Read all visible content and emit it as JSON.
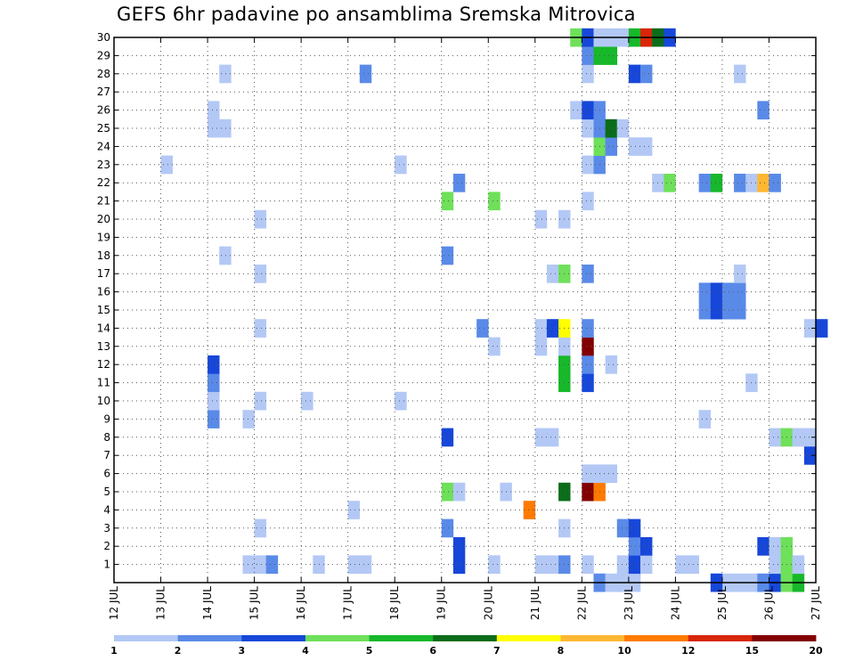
{
  "chart_data": {
    "type": "heatmap",
    "title": "GEFS 6hr padavine po ansamblima Sremska Mitrovica",
    "xlabel": "",
    "ylabel": "",
    "x_tick_labels": [
      "12 JUL",
      "13 JUL",
      "14 JUL",
      "15 JUL",
      "16 JUL",
      "17 JUL",
      "18 JUL",
      "19 JUL",
      "20 JUL",
      "21 JUL",
      "22 JUL",
      "23 JUL",
      "24 JUL",
      "25 JUL",
      "26 JUL",
      "27 JUL"
    ],
    "x_range_days": [
      12,
      27
    ],
    "time_step_hours": 6,
    "y_tick_labels": [
      "1",
      "2",
      "3",
      "4",
      "5",
      "6",
      "7",
      "8",
      "9",
      "10",
      "11",
      "12",
      "13",
      "14",
      "15",
      "16",
      "17",
      "18",
      "19",
      "20",
      "21",
      "22",
      "23",
      "24",
      "25",
      "26",
      "27",
      "28",
      "29",
      "30"
    ],
    "y_range": [
      0,
      30
    ],
    "grid": true,
    "legend_placement": "bottom",
    "legend": {
      "boundaries": [
        "1",
        "2",
        "3",
        "4",
        "5",
        "6",
        "7",
        "8",
        "10",
        "12",
        "15",
        "20"
      ],
      "colors": [
        "#b3c8f5",
        "#5a8ae8",
        "#1747d9",
        "#6ee05a",
        "#17b82a",
        "#0b6d1a",
        "#ffff00",
        "#ffb732",
        "#ff7a00",
        "#d72608",
        "#820000"
      ]
    },
    "cells": [
      {
        "day": 22,
        "slot": 1,
        "member": 0,
        "level": 2
      },
      {
        "day": 22,
        "slot": 2,
        "member": 0,
        "level": 1
      },
      {
        "day": 22,
        "slot": 3,
        "member": 0,
        "level": 1
      },
      {
        "day": 22,
        "slot": 4,
        "member": 0,
        "level": 1
      },
      {
        "day": 25,
        "slot": 0,
        "member": 0,
        "level": 1
      },
      {
        "day": 25,
        "slot": 1,
        "member": 0,
        "level": 1
      },
      {
        "day": 25,
        "slot": 2,
        "member": 0,
        "level": 1
      },
      {
        "day": 25,
        "slot": 3,
        "member": 0,
        "level": 2
      },
      {
        "day": 26,
        "slot": 0,
        "member": 0,
        "level": 3
      },
      {
        "day": 26,
        "slot": 1,
        "member": 0,
        "level": 4
      },
      {
        "day": 26,
        "slot": 2,
        "member": 0,
        "level": 5
      },
      {
        "day": 24,
        "slot": 3,
        "member": 0,
        "level": 3
      },
      {
        "day": 14,
        "slot": 3,
        "member": 1,
        "level": 1
      },
      {
        "day": 15,
        "slot": 0,
        "member": 1,
        "level": 1
      },
      {
        "day": 15,
        "slot": 1,
        "member": 1,
        "level": 2
      },
      {
        "day": 16,
        "slot": 1,
        "member": 1,
        "level": 1
      },
      {
        "day": 17,
        "slot": 0,
        "member": 1,
        "level": 1
      },
      {
        "day": 17,
        "slot": 1,
        "member": 1,
        "level": 1
      },
      {
        "day": 19,
        "slot": 1,
        "member": 1,
        "level": 3
      },
      {
        "day": 20,
        "slot": 0,
        "member": 1,
        "level": 1
      },
      {
        "day": 21,
        "slot": 0,
        "member": 1,
        "level": 1
      },
      {
        "day": 21,
        "slot": 1,
        "member": 1,
        "level": 1
      },
      {
        "day": 21,
        "slot": 2,
        "member": 1,
        "level": 2
      },
      {
        "day": 22,
        "slot": 0,
        "member": 1,
        "level": 1
      },
      {
        "day": 22,
        "slot": 3,
        "member": 1,
        "level": 1
      },
      {
        "day": 23,
        "slot": 0,
        "member": 1,
        "level": 3
      },
      {
        "day": 23,
        "slot": 1,
        "member": 1,
        "level": 1
      },
      {
        "day": 24,
        "slot": 0,
        "member": 1,
        "level": 1
      },
      {
        "day": 24,
        "slot": 1,
        "member": 1,
        "level": 1
      },
      {
        "day": 26,
        "slot": 0,
        "member": 1,
        "level": 1
      },
      {
        "day": 26,
        "slot": 1,
        "member": 1,
        "level": 4
      },
      {
        "day": 26,
        "slot": 2,
        "member": 1,
        "level": 1
      },
      {
        "day": 19,
        "slot": 1,
        "member": 2,
        "level": 3
      },
      {
        "day": 23,
        "slot": 0,
        "member": 2,
        "level": 2
      },
      {
        "day": 23,
        "slot": 1,
        "member": 2,
        "level": 3
      },
      {
        "day": 25,
        "slot": 3,
        "member": 2,
        "level": 3
      },
      {
        "day": 26,
        "slot": 0,
        "member": 2,
        "level": 1
      },
      {
        "day": 26,
        "slot": 1,
        "member": 2,
        "level": 4
      },
      {
        "day": 15,
        "slot": 0,
        "member": 3,
        "level": 1
      },
      {
        "day": 19,
        "slot": 0,
        "member": 3,
        "level": 2
      },
      {
        "day": 21,
        "slot": 2,
        "member": 3,
        "level": 1
      },
      {
        "day": 22,
        "slot": 3,
        "member": 3,
        "level": 2
      },
      {
        "day": 23,
        "slot": 0,
        "member": 3,
        "level": 3
      },
      {
        "day": 17,
        "slot": 0,
        "member": 4,
        "level": 1
      },
      {
        "day": 20,
        "slot": 3,
        "member": 4,
        "level": 9
      },
      {
        "day": 19,
        "slot": 0,
        "member": 5,
        "level": 4
      },
      {
        "day": 19,
        "slot": 1,
        "member": 5,
        "level": 1
      },
      {
        "day": 20,
        "slot": 1,
        "member": 5,
        "level": 1
      },
      {
        "day": 21,
        "slot": 2,
        "member": 5,
        "level": 6
      },
      {
        "day": 22,
        "slot": 0,
        "member": 5,
        "level": 11
      },
      {
        "day": 22,
        "slot": 1,
        "member": 5,
        "level": 9
      },
      {
        "day": 22,
        "slot": 0,
        "member": 6,
        "level": 1
      },
      {
        "day": 22,
        "slot": 1,
        "member": 6,
        "level": 1
      },
      {
        "day": 22,
        "slot": 2,
        "member": 6,
        "level": 1
      },
      {
        "day": 26,
        "slot": 3,
        "member": 7,
        "level": 3
      },
      {
        "day": 19,
        "slot": 0,
        "member": 8,
        "level": 3
      },
      {
        "day": 21,
        "slot": 0,
        "member": 8,
        "level": 1
      },
      {
        "day": 21,
        "slot": 1,
        "member": 8,
        "level": 1
      },
      {
        "day": 26,
        "slot": 0,
        "member": 8,
        "level": 1
      },
      {
        "day": 26,
        "slot": 1,
        "member": 8,
        "level": 4
      },
      {
        "day": 26,
        "slot": 2,
        "member": 8,
        "level": 1
      },
      {
        "day": 26,
        "slot": 3,
        "member": 8,
        "level": 1
      },
      {
        "day": 14,
        "slot": 0,
        "member": 9,
        "level": 2
      },
      {
        "day": 14,
        "slot": 3,
        "member": 9,
        "level": 1
      },
      {
        "day": 24,
        "slot": 2,
        "member": 9,
        "level": 1
      },
      {
        "day": 14,
        "slot": 0,
        "member": 10,
        "level": 1
      },
      {
        "day": 15,
        "slot": 0,
        "member": 10,
        "level": 1
      },
      {
        "day": 16,
        "slot": 0,
        "member": 10,
        "level": 1
      },
      {
        "day": 18,
        "slot": 0,
        "member": 10,
        "level": 1
      },
      {
        "day": 14,
        "slot": 0,
        "member": 11,
        "level": 2
      },
      {
        "day": 21,
        "slot": 2,
        "member": 11,
        "level": 5
      },
      {
        "day": 22,
        "slot": 0,
        "member": 11,
        "level": 3
      },
      {
        "day": 25,
        "slot": 2,
        "member": 11,
        "level": 1
      },
      {
        "day": 14,
        "slot": 0,
        "member": 12,
        "level": 3
      },
      {
        "day": 21,
        "slot": 2,
        "member": 12,
        "level": 5
      },
      {
        "day": 22,
        "slot": 0,
        "member": 12,
        "level": 2
      },
      {
        "day": 22,
        "slot": 2,
        "member": 12,
        "level": 1
      },
      {
        "day": 20,
        "slot": 0,
        "member": 13,
        "level": 1
      },
      {
        "day": 21,
        "slot": 0,
        "member": 13,
        "level": 1
      },
      {
        "day": 21,
        "slot": 2,
        "member": 13,
        "level": 1
      },
      {
        "day": 22,
        "slot": 0,
        "member": 13,
        "level": 11
      },
      {
        "day": 15,
        "slot": 0,
        "member": 14,
        "level": 1
      },
      {
        "day": 19,
        "slot": 3,
        "member": 14,
        "level": 2
      },
      {
        "day": 21,
        "slot": 0,
        "member": 14,
        "level": 1
      },
      {
        "day": 21,
        "slot": 1,
        "member": 14,
        "level": 3
      },
      {
        "day": 21,
        "slot": 2,
        "member": 14,
        "level": 7
      },
      {
        "day": 22,
        "slot": 0,
        "member": 14,
        "level": 2
      },
      {
        "day": 26,
        "slot": 3,
        "member": 14,
        "level": 1
      },
      {
        "day": 27,
        "slot": 0,
        "member": 14,
        "level": 3
      },
      {
        "day": 24,
        "slot": 2,
        "member": 15,
        "level": 2
      },
      {
        "day": 24,
        "slot": 3,
        "member": 15,
        "level": 3
      },
      {
        "day": 25,
        "slot": 0,
        "member": 15,
        "level": 2
      },
      {
        "day": 25,
        "slot": 1,
        "member": 15,
        "level": 2
      },
      {
        "day": 24,
        "slot": 2,
        "member": 16,
        "level": 2
      },
      {
        "day": 24,
        "slot": 3,
        "member": 16,
        "level": 3
      },
      {
        "day": 25,
        "slot": 0,
        "member": 16,
        "level": 2
      },
      {
        "day": 25,
        "slot": 1,
        "member": 16,
        "level": 2
      },
      {
        "day": 15,
        "slot": 0,
        "member": 17,
        "level": 1
      },
      {
        "day": 21,
        "slot": 1,
        "member": 17,
        "level": 1
      },
      {
        "day": 21,
        "slot": 2,
        "member": 17,
        "level": 4
      },
      {
        "day": 22,
        "slot": 0,
        "member": 17,
        "level": 2
      },
      {
        "day": 25,
        "slot": 1,
        "member": 17,
        "level": 1
      },
      {
        "day": 14,
        "slot": 1,
        "member": 18,
        "level": 1
      },
      {
        "day": 19,
        "slot": 0,
        "member": 18,
        "level": 2
      },
      {
        "day": 15,
        "slot": 0,
        "member": 20,
        "level": 1
      },
      {
        "day": 21,
        "slot": 0,
        "member": 20,
        "level": 1
      },
      {
        "day": 21,
        "slot": 2,
        "member": 20,
        "level": 1
      },
      {
        "day": 19,
        "slot": 0,
        "member": 21,
        "level": 4
      },
      {
        "day": 20,
        "slot": 0,
        "member": 21,
        "level": 4
      },
      {
        "day": 22,
        "slot": 0,
        "member": 21,
        "level": 1
      },
      {
        "day": 19,
        "slot": 1,
        "member": 22,
        "level": 2
      },
      {
        "day": 23,
        "slot": 2,
        "member": 22,
        "level": 1
      },
      {
        "day": 23,
        "slot": 3,
        "member": 22,
        "level": 4
      },
      {
        "day": 24,
        "slot": 2,
        "member": 22,
        "level": 2
      },
      {
        "day": 24,
        "slot": 3,
        "member": 22,
        "level": 5
      },
      {
        "day": 25,
        "slot": 1,
        "member": 22,
        "level": 2
      },
      {
        "day": 25,
        "slot": 2,
        "member": 22,
        "level": 1
      },
      {
        "day": 25,
        "slot": 3,
        "member": 22,
        "level": 8
      },
      {
        "day": 26,
        "slot": 0,
        "member": 22,
        "level": 2
      },
      {
        "day": 13,
        "slot": 0,
        "member": 23,
        "level": 1
      },
      {
        "day": 18,
        "slot": 0,
        "member": 23,
        "level": 1
      },
      {
        "day": 22,
        "slot": 0,
        "member": 23,
        "level": 1
      },
      {
        "day": 22,
        "slot": 1,
        "member": 23,
        "level": 2
      },
      {
        "day": 22,
        "slot": 1,
        "member": 24,
        "level": 4
      },
      {
        "day": 22,
        "slot": 2,
        "member": 24,
        "level": 2
      },
      {
        "day": 23,
        "slot": 0,
        "member": 24,
        "level": 1
      },
      {
        "day": 23,
        "slot": 1,
        "member": 24,
        "level": 1
      },
      {
        "day": 14,
        "slot": 0,
        "member": 25,
        "level": 1
      },
      {
        "day": 14,
        "slot": 1,
        "member": 25,
        "level": 1
      },
      {
        "day": 22,
        "slot": 0,
        "member": 25,
        "level": 1
      },
      {
        "day": 22,
        "slot": 1,
        "member": 25,
        "level": 2
      },
      {
        "day": 22,
        "slot": 2,
        "member": 25,
        "level": 6
      },
      {
        "day": 22,
        "slot": 3,
        "member": 25,
        "level": 1
      },
      {
        "day": 14,
        "slot": 0,
        "member": 26,
        "level": 1
      },
      {
        "day": 21,
        "slot": 3,
        "member": 26,
        "level": 1
      },
      {
        "day": 22,
        "slot": 0,
        "member": 26,
        "level": 3
      },
      {
        "day": 22,
        "slot": 1,
        "member": 26,
        "level": 2
      },
      {
        "day": 25,
        "slot": 3,
        "member": 26,
        "level": 2
      },
      {
        "day": 14,
        "slot": 1,
        "member": 28,
        "level": 1
      },
      {
        "day": 17,
        "slot": 1,
        "member": 28,
        "level": 2
      },
      {
        "day": 22,
        "slot": 0,
        "member": 28,
        "level": 1
      },
      {
        "day": 23,
        "slot": 0,
        "member": 28,
        "level": 3
      },
      {
        "day": 23,
        "slot": 1,
        "member": 28,
        "level": 2
      },
      {
        "day": 25,
        "slot": 1,
        "member": 28,
        "level": 1
      },
      {
        "day": 22,
        "slot": 0,
        "member": 29,
        "level": 2
      },
      {
        "day": 22,
        "slot": 1,
        "member": 29,
        "level": 5
      },
      {
        "day": 22,
        "slot": 2,
        "member": 29,
        "level": 5
      },
      {
        "day": 21,
        "slot": 3,
        "member": 30,
        "level": 4
      },
      {
        "day": 22,
        "slot": 0,
        "member": 30,
        "level": 3
      },
      {
        "day": 22,
        "slot": 1,
        "member": 30,
        "level": 1
      },
      {
        "day": 22,
        "slot": 2,
        "member": 30,
        "level": 1
      },
      {
        "day": 22,
        "slot": 3,
        "member": 30,
        "level": 1
      },
      {
        "day": 23,
        "slot": 0,
        "member": 30,
        "level": 5
      },
      {
        "day": 23,
        "slot": 1,
        "member": 30,
        "level": 10
      },
      {
        "day": 23,
        "slot": 2,
        "member": 30,
        "level": 6
      },
      {
        "day": 23,
        "slot": 3,
        "member": 30,
        "level": 3
      }
    ]
  }
}
